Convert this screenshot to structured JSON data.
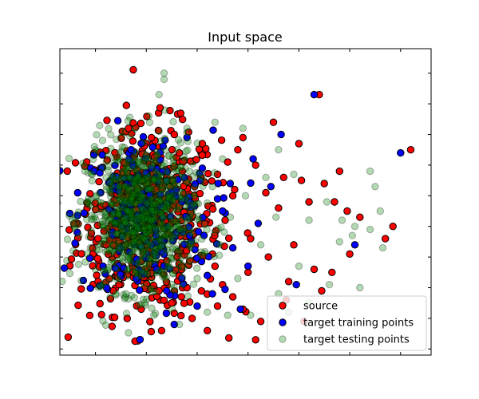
{
  "chart_data": {
    "type": "scatter",
    "title": "Input space",
    "xlabel": "",
    "ylabel": "",
    "xlim": [
      -4.2,
      10.4
    ],
    "ylim": [
      -4.1,
      5.9
    ],
    "xticks": [
      -2.8,
      -0.8,
      1.2,
      3.2,
      5.2,
      7.2,
      9.2
    ],
    "yticks": [
      -3.9,
      -2.9,
      -1.9,
      -0.9,
      0.1,
      1.1,
      2.1,
      3.1,
      4.1,
      5.1
    ],
    "grid": false,
    "legend_position": "bottom-right",
    "series": [
      {
        "name": "source",
        "color": "#ff0000",
        "edgecolor": "#000000",
        "points": [
          [
            9.6,
            2.6
          ],
          [
            6.0,
            4.4
          ],
          [
            8.6,
            -0.3
          ],
          [
            8.9,
            0.1
          ],
          [
            7.6,
            0.4
          ],
          [
            7.2,
            -0.8
          ],
          [
            6.8,
            1.9
          ],
          [
            6.2,
            1.5
          ],
          [
            5.4,
            -3.0
          ],
          [
            3.5,
            -3.6
          ],
          [
            4.8,
            -1.7
          ],
          [
            6.1,
            -2.0
          ],
          [
            4.2,
            3.5
          ],
          [
            5.2,
            2.8
          ],
          [
            3.0,
            -2.6
          ],
          [
            2.0,
            -2.5
          ],
          [
            -0.2,
            -3.3
          ],
          [
            -3.2,
            0.5
          ],
          [
            -2.6,
            2.0
          ],
          [
            -1.5,
            3.3
          ],
          [
            0.3,
            3.1
          ],
          [
            1.4,
            2.8
          ],
          [
            2.6,
            1.1
          ],
          [
            -2.1,
            -2.0
          ],
          [
            0.8,
            -1.9
          ],
          [
            1.8,
            -0.8
          ],
          [
            -1.0,
            -2.6
          ],
          [
            2.3,
            0.3
          ],
          [
            0.0,
            1.7
          ],
          [
            -2.4,
            0.8
          ],
          [
            3.9,
            1.2
          ],
          [
            4.4,
            0.7
          ],
          [
            5.0,
            -0.5
          ],
          [
            3.2,
            -1.4
          ],
          [
            1.0,
            -2.9
          ],
          [
            2.6,
            -2.2
          ],
          [
            -0.8,
            2.4
          ],
          [
            5.6,
            0.9
          ],
          [
            4.6,
            1.7
          ],
          [
            3.5,
            2.1
          ],
          [
            -1.8,
            -1.5
          ],
          [
            2.0,
            1.8
          ],
          [
            0.6,
            -1.2
          ],
          [
            1.5,
            0.2
          ],
          [
            -2.7,
            -0.3
          ],
          [
            -0.3,
            -2.0
          ],
          [
            4.0,
            -0.9
          ],
          [
            6.6,
            0.9
          ],
          [
            2.8,
            2.6
          ],
          [
            1.1,
            1.4
          ],
          [
            -1.3,
            -0.9
          ],
          [
            3.3,
            -0.3
          ],
          [
            2.2,
            -1.8
          ],
          [
            0.2,
            -2.4
          ],
          [
            -2.2,
            1.5
          ],
          [
            5.8,
            -1.3
          ],
          [
            4.7,
            -2.3
          ],
          [
            3.7,
            -3.0
          ],
          [
            1.6,
            -3.3
          ],
          [
            0.5,
            2.5
          ],
          [
            -0.6,
            3.0
          ],
          [
            6.5,
            -1.4
          ],
          [
            7.1,
            0.6
          ],
          [
            5.3,
            1.6
          ],
          [
            3.0,
            3.0
          ],
          [
            2.4,
            2.2
          ],
          [
            -1.7,
            2.2
          ],
          [
            -2.9,
            -0.8
          ],
          [
            1.9,
            -1.2
          ]
        ]
      },
      {
        "name": "target training points",
        "color": "#0000ff",
        "edgecolor": "#000000",
        "points": [
          [
            9.2,
            2.5
          ],
          [
            5.8,
            4.4
          ],
          [
            4.5,
            3.1
          ],
          [
            -3.5,
            1.2
          ],
          [
            7.4,
            -0.5
          ],
          [
            3.2,
            -1.2
          ],
          [
            2.5,
            1.5
          ],
          [
            -2.5,
            -1.2
          ],
          [
            -0.4,
            -1.3
          ],
          [
            0.8,
            3.0
          ],
          [
            1.8,
            -2.1
          ],
          [
            0.3,
            -3.1
          ],
          [
            2.2,
            0.6
          ],
          [
            -1.2,
            -1.6
          ],
          [
            2.9,
            -2.6
          ],
          [
            0.9,
            -0.2
          ],
          [
            -2.0,
            0.2
          ],
          [
            4.1,
            1.4
          ],
          [
            1.4,
            2.0
          ],
          [
            -1.4,
            2.6
          ],
          [
            0.6,
            0.9
          ],
          [
            1.6,
            -1.5
          ],
          [
            2.6,
            -0.6
          ],
          [
            5.1,
            -1.8
          ],
          [
            3.6,
            0.2
          ],
          [
            -0.6,
            2.0
          ],
          [
            -2.6,
            1.2
          ],
          [
            1.2,
            -2.5
          ],
          [
            3.4,
            2.3
          ],
          [
            0.0,
            -2.0
          ],
          [
            -1.8,
            -0.6
          ],
          [
            2.0,
            1.0
          ]
        ]
      },
      {
        "name": "target testing points",
        "color": "#008000",
        "edgecolor": "#000000",
        "points": [
          [
            -0.1,
            5.1
          ],
          [
            -0.1,
            4.9
          ],
          [
            -0.3,
            4.4
          ],
          [
            8.0,
            1.9
          ],
          [
            8.2,
            1.4
          ],
          [
            8.4,
            0.6
          ],
          [
            7.3,
            -0.2
          ],
          [
            7.4,
            0.1
          ],
          [
            8.0,
            0.0
          ],
          [
            8.5,
            -0.6
          ],
          [
            6.8,
            -0.4
          ],
          [
            6.9,
            0.3
          ],
          [
            5.2,
            -1.2
          ],
          [
            5.6,
            -2.4
          ],
          [
            4.4,
            -2.1
          ],
          [
            4.8,
            -2.7
          ],
          [
            3.3,
            -2.8
          ],
          [
            2.4,
            -2.8
          ],
          [
            1.6,
            -2.7
          ],
          [
            0.5,
            -3.1
          ],
          [
            -0.5,
            -2.8
          ],
          [
            -1.6,
            -2.1
          ],
          [
            -2.2,
            -1.6
          ],
          [
            5.0,
            1.8
          ],
          [
            4.4,
            2.6
          ],
          [
            3.0,
            3.3
          ],
          [
            1.9,
            3.5
          ],
          [
            0.8,
            3.3
          ],
          [
            -0.7,
            3.7
          ],
          [
            -1.7,
            3.2
          ],
          [
            -2.8,
            2.6
          ],
          [
            -3.1,
            0.9
          ],
          [
            -3.0,
            -0.6
          ],
          [
            -2.5,
            -1.8
          ],
          [
            5.6,
            0.3
          ],
          [
            6.3,
            0.9
          ],
          [
            4.3,
            0.4
          ],
          [
            3.1,
            1.1
          ],
          [
            2.5,
            0.4
          ],
          [
            2.1,
            -0.5
          ],
          [
            1.2,
            -1.6
          ],
          [
            0.3,
            -2.0
          ],
          [
            -0.9,
            -1.2
          ],
          [
            -1.6,
            -0.3
          ],
          [
            -1.4,
            1.0
          ],
          [
            -0.3,
            1.6
          ],
          [
            0.9,
            1.9
          ],
          [
            1.8,
            1.4
          ],
          [
            3.7,
            -0.5
          ],
          [
            2.8,
            -1.6
          ],
          [
            1.5,
            -0.8
          ],
          [
            0.2,
            -0.4
          ],
          [
            -0.6,
            0.3
          ],
          [
            -1.9,
            0.5
          ],
          [
            -1.1,
            2.2
          ],
          [
            0.4,
            2.6
          ],
          [
            2.2,
            2.3
          ],
          [
            3.9,
            1.7
          ],
          [
            6.4,
            -1.8
          ],
          [
            7.6,
            -1.9
          ]
        ]
      }
    ],
    "dense_clusters": [
      {
        "series_index": 2,
        "center": [
          -1.0,
          0.4
        ],
        "spread": [
          1.1,
          1.2
        ],
        "count": 900
      },
      {
        "series_index": 0,
        "center": [
          -0.7,
          0.3
        ],
        "spread": [
          1.4,
          1.5
        ],
        "count": 520
      },
      {
        "series_index": 1,
        "center": [
          -0.8,
          0.4
        ],
        "spread": [
          1.3,
          1.4
        ],
        "count": 200
      }
    ]
  }
}
